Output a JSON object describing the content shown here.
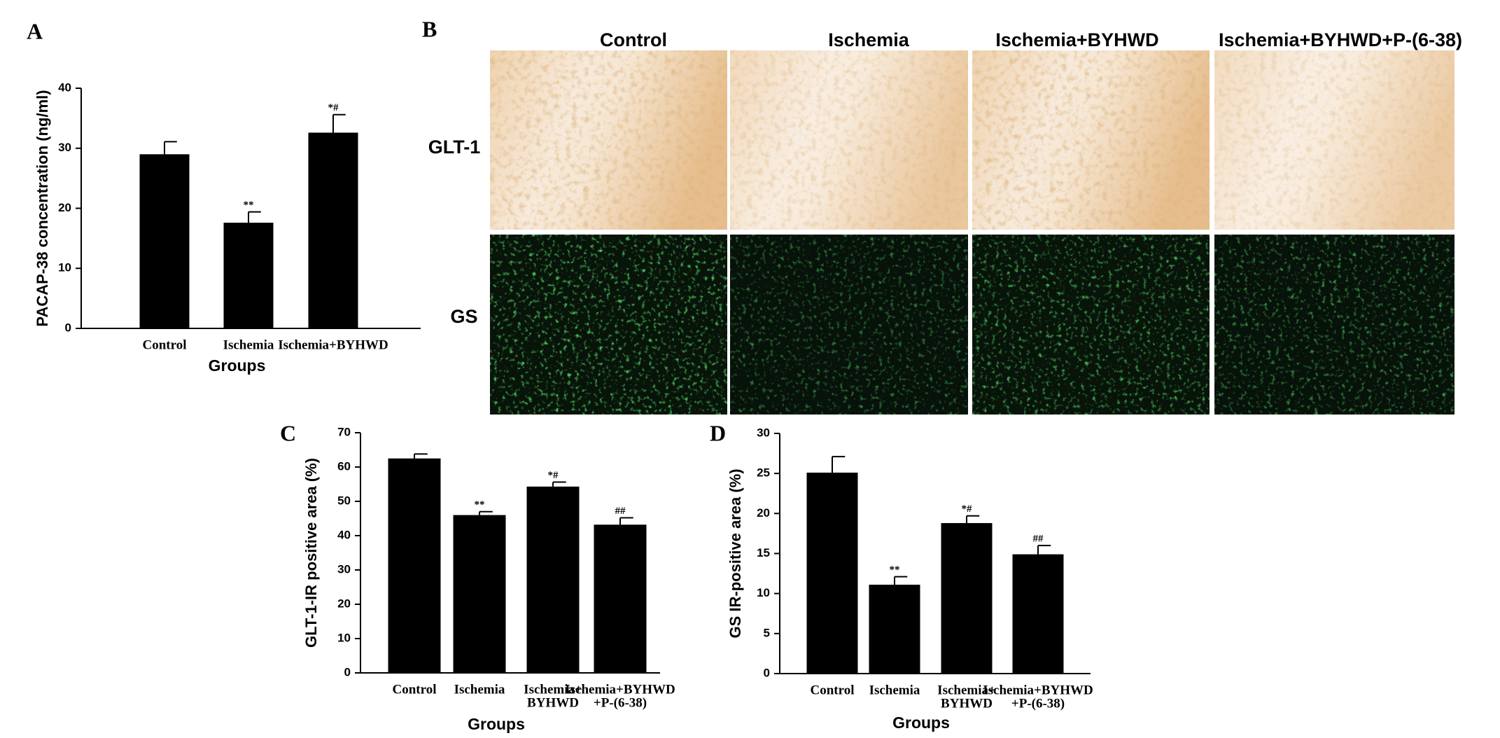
{
  "chart_data": [
    {
      "type": "bar",
      "panel": "A",
      "y_label": "PACAP-38 concentration (ng/ml)",
      "x_label": "Groups",
      "categories": [
        [
          "Control"
        ],
        [
          "Ischemia"
        ],
        [
          "Ischemia+BYHWD"
        ]
      ],
      "values": [
        29,
        17.6,
        32.6
      ],
      "errors": [
        2.1,
        1.8,
        3.0
      ],
      "annotations": [
        null,
        "**",
        "*#"
      ],
      "color": "#000000",
      "ylim": [
        0,
        40
      ],
      "yticks": [
        0,
        10,
        20,
        30,
        40
      ]
    },
    {
      "type": "bar",
      "panel": "C",
      "y_label": "GLT-1-IR positive area (%)",
      "x_label": "Groups",
      "categories": [
        [
          "Control"
        ],
        [
          "Ischemia"
        ],
        [
          "Ischemia+",
          "BYHWD"
        ],
        [
          "Ischemia+BYHWD",
          "+P-(6-38)"
        ]
      ],
      "values": [
        62.5,
        46,
        54.3,
        43.2
      ],
      "errors": [
        1.3,
        1.0,
        1.3,
        2.0
      ],
      "annotations": [
        null,
        "**",
        "*#",
        "##"
      ],
      "color": "#000000",
      "ylim": [
        0,
        70
      ],
      "yticks": [
        0,
        10,
        20,
        30,
        40,
        50,
        60,
        70
      ]
    },
    {
      "type": "bar",
      "panel": "D",
      "y_label": "GS IR-positive area (%)",
      "x_label": "Groups",
      "categories": [
        [
          "Control"
        ],
        [
          "Ischemia"
        ],
        [
          "Ischemia+",
          "BYHWD"
        ],
        [
          "Ischemia+BYHWD",
          "+P-(6-38)"
        ]
      ],
      "values": [
        25.1,
        11.1,
        18.8,
        14.9
      ],
      "errors": [
        2.0,
        1.0,
        0.9,
        1.1
      ],
      "annotations": [
        null,
        "**",
        "*#",
        "##"
      ],
      "color": "#000000",
      "ylim": [
        0,
        30
      ],
      "yticks": [
        0,
        5,
        10,
        15,
        20,
        25,
        30
      ]
    }
  ],
  "panel_b": {
    "panel": "B",
    "columns": [
      "Control",
      "Ischemia",
      "Ischemia+BYHWD",
      "Ischemia+BYHWD+P-(6-38)"
    ],
    "rows": [
      "GLT-1",
      "GS"
    ]
  }
}
